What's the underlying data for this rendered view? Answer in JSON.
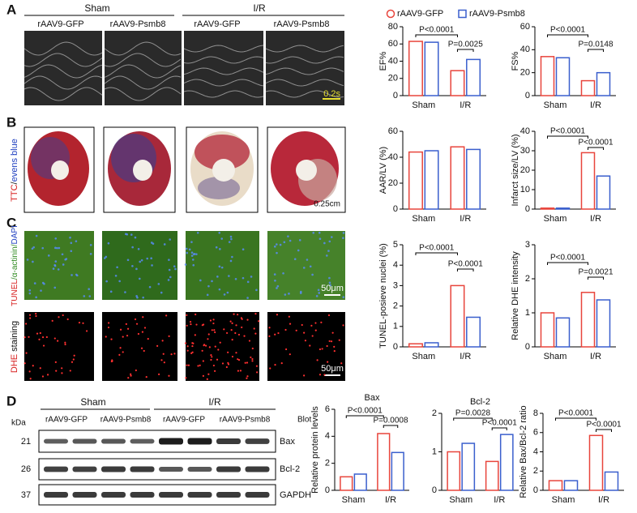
{
  "panels": {
    "A": {
      "letter": "A",
      "groups": [
        "Sham",
        "I/R"
      ],
      "subgroups": [
        "rAAV9-GFP",
        "rAAV9-Psmb8",
        "rAAV9-GFP",
        "rAAV9-Psmb8"
      ],
      "scale": "0.2s"
    },
    "B": {
      "letter": "B",
      "label_parts": [
        "TTC",
        "/",
        "evens blue"
      ],
      "scale": "0.25cm"
    },
    "C": {
      "letter": "C",
      "label1_parts": [
        "TUNEL",
        "/α-actinin/",
        "DAPI"
      ],
      "scale1": "50μm",
      "label2_parts": [
        "DHE",
        " staining"
      ],
      "scale2": "50μm"
    },
    "D": {
      "letter": "D",
      "groups": [
        "Sham",
        "I/R"
      ],
      "subgroups": [
        "rAAV9-GFP",
        "rAAV9-Psmb8",
        "rAAV9-GFP",
        "rAAV9-Psmb8"
      ],
      "kda": "kDa",
      "blot": "Blot",
      "rows": [
        {
          "kda": 21,
          "name": "Bax"
        },
        {
          "kda": 26,
          "name": "Bcl-2"
        },
        {
          "kda": 37,
          "name": "GAPDH"
        }
      ]
    }
  },
  "chart_data": [
    {
      "type": "bar",
      "y_label": "EF%",
      "categories": [
        "Sham",
        "I/R"
      ],
      "series": [
        {
          "name": "rAAV9-GFP",
          "color": "#e8453c",
          "values": [
            63,
            29
          ]
        },
        {
          "name": "rAAV9-Psmb8",
          "color": "#3a5fcd",
          "values": [
            62,
            42
          ]
        }
      ],
      "ylim": [
        0,
        80
      ],
      "yticks": [
        0,
        20,
        40,
        60,
        80
      ],
      "annotations": [
        "P<0.0001",
        "P=0.0025"
      ]
    },
    {
      "type": "bar",
      "y_label": "FS%",
      "categories": [
        "Sham",
        "I/R"
      ],
      "series": [
        {
          "color": "#e8453c",
          "values": [
            34,
            13
          ]
        },
        {
          "color": "#3a5fcd",
          "values": [
            33,
            20
          ]
        }
      ],
      "ylim": [
        0,
        60
      ],
      "yticks": [
        0,
        20,
        40,
        60
      ],
      "annotations": [
        "P<0.0001",
        "P=0.0148"
      ]
    },
    {
      "type": "bar",
      "y_label": "AAR/LV (%)",
      "categories": [
        "Sham",
        "I/R"
      ],
      "series": [
        {
          "color": "#e8453c",
          "values": [
            44,
            48
          ]
        },
        {
          "color": "#3a5fcd",
          "values": [
            45,
            46
          ]
        }
      ],
      "ylim": [
        0,
        60
      ],
      "yticks": [
        0,
        20,
        40,
        60
      ],
      "annotations": []
    },
    {
      "type": "bar",
      "y_label": "Infarct size/LV (%)",
      "categories": [
        "Sham",
        "I/R"
      ],
      "series": [
        {
          "color": "#e8453c",
          "values": [
            0.5,
            29
          ]
        },
        {
          "color": "#3a5fcd",
          "values": [
            0.5,
            17
          ]
        }
      ],
      "ylim": [
        0,
        40
      ],
      "yticks": [
        0,
        10,
        20,
        30,
        40
      ],
      "annotations": [
        "P<0.0001",
        "P<0.0001"
      ]
    },
    {
      "type": "bar",
      "y_label": "TUNEL-posieve nuclei (%)",
      "categories": [
        "Sham",
        "I/R"
      ],
      "series": [
        {
          "color": "#e8453c",
          "values": [
            0.15,
            3.0
          ]
        },
        {
          "color": "#3a5fcd",
          "values": [
            0.2,
            1.45
          ]
        }
      ],
      "ylim": [
        0,
        5
      ],
      "yticks": [
        0,
        1,
        2,
        3,
        4,
        5
      ],
      "annotations": [
        "P<0.0001",
        "P<0.0001"
      ]
    },
    {
      "type": "bar",
      "y_label": "Relative DHE intensity",
      "categories": [
        "Sham",
        "I/R"
      ],
      "series": [
        {
          "color": "#e8453c",
          "values": [
            1.0,
            1.6
          ]
        },
        {
          "color": "#3a5fcd",
          "values": [
            0.85,
            1.38
          ]
        }
      ],
      "ylim": [
        0,
        3
      ],
      "yticks": [
        0,
        1,
        2,
        3
      ],
      "annotations": [
        "P<0.0001",
        "P=0.0021"
      ]
    },
    {
      "type": "bar",
      "title": "Bax",
      "y_label": "Relative protein levels",
      "categories": [
        "Sham",
        "I/R"
      ],
      "series": [
        {
          "color": "#e8453c",
          "values": [
            1.0,
            4.2
          ]
        },
        {
          "color": "#3a5fcd",
          "values": [
            1.2,
            2.8
          ]
        }
      ],
      "ylim": [
        0,
        6
      ],
      "yticks": [
        0,
        2,
        4,
        6
      ],
      "annotations": [
        "P<0.0001",
        "P=0.0008"
      ]
    },
    {
      "type": "bar",
      "title": "Bcl-2",
      "categories": [
        "Sham",
        "I/R"
      ],
      "series": [
        {
          "color": "#e8453c",
          "values": [
            1.0,
            0.75
          ]
        },
        {
          "color": "#3a5fcd",
          "values": [
            1.22,
            1.45
          ]
        }
      ],
      "ylim": [
        0,
        2
      ],
      "yticks": [
        0,
        1,
        2
      ],
      "annotations": [
        "P=0.0028",
        "P<0.0001"
      ]
    },
    {
      "type": "bar",
      "y_label": "Relative Bax/Bcl-2 ratio",
      "categories": [
        "Sham",
        "I/R"
      ],
      "series": [
        {
          "color": "#e8453c",
          "values": [
            1.0,
            5.7
          ]
        },
        {
          "color": "#3a5fcd",
          "values": [
            1.0,
            1.9
          ]
        }
      ],
      "ylim": [
        0,
        8
      ],
      "yticks": [
        0,
        2,
        4,
        6,
        8
      ],
      "annotations": [
        "P<0.0001",
        "P<0.0001"
      ]
    }
  ]
}
